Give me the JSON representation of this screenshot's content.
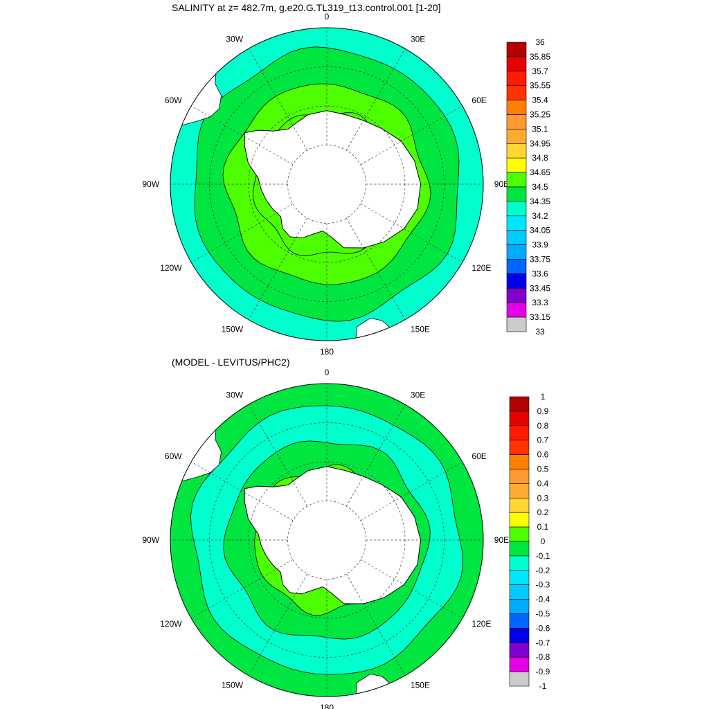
{
  "chart_data": [
    {
      "type": "heatmap",
      "projection": "south-polar-stereographic",
      "title": "SALINITY at z= 482.7m, g.e20.G.TL319_t13.control.001 [1-20]",
      "xlabel": "",
      "ylabel": "",
      "longitude_labels": [
        "0",
        "30E",
        "60E",
        "90E",
        "120E",
        "150E",
        "180",
        "150W",
        "120W",
        "90W",
        "60W",
        "30W"
      ],
      "grid": true,
      "legend": "right",
      "colorbar": {
        "levels": [
          "36",
          "35.85",
          "35.7",
          "35.55",
          "35.4",
          "35.25",
          "35.1",
          "34.95",
          "34.8",
          "34.65",
          "34.5",
          "34.35",
          "34.2",
          "34.05",
          "33.9",
          "33.75",
          "33.6",
          "33.45",
          "33.3",
          "33.15",
          "33"
        ],
        "colors": [
          "#b30000",
          "#e60000",
          "#ff1a00",
          "#ff3300",
          "#ff8000",
          "#ff9933",
          "#ffaa33",
          "#ffd633",
          "#ffff00",
          "#4dff00",
          "#00e640",
          "#00ffcc",
          "#00e6ff",
          "#00ccff",
          "#00aaff",
          "#0066ff",
          "#0000e6",
          "#8000cc",
          "#e600e6",
          "#cccccc",
          "#666666"
        ]
      },
      "regions": [
        {
          "band": "coast",
          "value": 34.8,
          "color": "#4dff00"
        },
        {
          "band": "middle",
          "value": 34.65,
          "color": "#4dff00"
        },
        {
          "band": "outer",
          "value": 34.5,
          "color": "#00e640"
        },
        {
          "band": "rim",
          "value": 34.35,
          "color": "#00ffcc"
        }
      ]
    },
    {
      "type": "heatmap",
      "projection": "south-polar-stereographic",
      "title": "(MODEL - LEVITUS/PHC2)",
      "xlabel": "",
      "ylabel": "",
      "longitude_labels": [
        "0",
        "30E",
        "60E",
        "90E",
        "120E",
        "150E",
        "180",
        "150W",
        "120W",
        "90W",
        "60W",
        "30W"
      ],
      "grid": true,
      "legend": "right",
      "colorbar": {
        "levels": [
          "1",
          "0.9",
          "0.8",
          "0.7",
          "0.6",
          "0.5",
          "0.4",
          "0.3",
          "0.2",
          "0.1",
          "0",
          "-0.1",
          "-0.2",
          "-0.3",
          "-0.4",
          "-0.5",
          "-0.6",
          "-0.7",
          "-0.8",
          "-0.9",
          "-1"
        ],
        "colors": [
          "#b30000",
          "#e60000",
          "#ff1a00",
          "#ff3300",
          "#ff8000",
          "#ff9933",
          "#ffaa33",
          "#ffd633",
          "#ffff00",
          "#4dff00",
          "#00e640",
          "#00ffcc",
          "#00e6ff",
          "#00ccff",
          "#00aaff",
          "#0066ff",
          "#0000e6",
          "#8000cc",
          "#e600e6",
          "#cccccc",
          "#666666"
        ]
      },
      "regions": [
        {
          "band": "coast",
          "value": 0.1,
          "color": "#4dff00"
        },
        {
          "band": "middle",
          "value": 0,
          "color": "#00e640"
        },
        {
          "band": "outer",
          "value": -0.1,
          "color": "#00ffcc"
        },
        {
          "band": "rim",
          "value": 0,
          "color": "#00e640"
        }
      ]
    }
  ],
  "colors": {
    "land": "#ffffff",
    "coastline": "#000000",
    "gridline": "#333333"
  }
}
